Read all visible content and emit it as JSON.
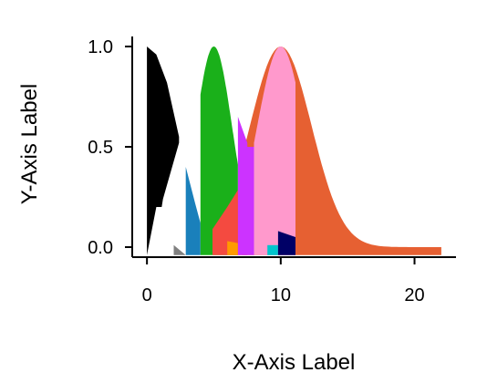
{
  "chart_data": {
    "type": "area",
    "xlabel": "X-Axis Label",
    "ylabel": "Y-Axis Label",
    "xlim": [
      -1.1,
      23.1
    ],
    "ylim": [
      -0.05,
      1.05
    ],
    "x_ticks": [
      0,
      10,
      20
    ],
    "x_tick_labels": [
      "0",
      "10",
      "20"
    ],
    "y_ticks": [
      0.0,
      0.5,
      1.0
    ],
    "y_tick_labels": [
      "0.0",
      "0.5",
      "1.0"
    ],
    "grid": false,
    "legend": "none",
    "baseline": -0.04,
    "series": [
      {
        "color": "#e66032",
        "type": "gaussian",
        "mean": 10,
        "sd": 2.3,
        "x0": 7.1,
        "x1": 22
      },
      {
        "color": "#000000",
        "type": "points",
        "x": [
          0,
          0.7,
          1.5,
          2.4,
          2.4,
          1.2,
          1.1,
          0.7,
          0
        ],
        "y": [
          1.0,
          0.96,
          0.82,
          0.55,
          0.52,
          0.24,
          0.2,
          0.2,
          0
        ]
      },
      {
        "color": "#808080",
        "type": "points",
        "x": [
          2,
          2.4,
          2.9,
          2.9,
          2
        ],
        "y": [
          0,
          0,
          0,
          0,
          0.01
        ]
      },
      {
        "color": "#1a80bb",
        "type": "points",
        "x": [
          2.9,
          3.6,
          4.0,
          4.0,
          2.9
        ],
        "y": [
          0.4,
          0.22,
          0.12,
          0,
          0
        ]
      },
      {
        "color": "#1ab01a",
        "type": "gaussian",
        "mean": 5,
        "sd": 1.35,
        "x0": 4.0,
        "x1": 6.8
      },
      {
        "color": "#f44a40",
        "type": "points",
        "x": [
          4.9,
          6.0,
          7.5,
          7.5,
          4.9
        ],
        "y": [
          0.09,
          0.2,
          0.36,
          0,
          0
        ]
      },
      {
        "color": "#ff9a00",
        "type": "points",
        "x": [
          6.0,
          6.8,
          6.8,
          6.0
        ],
        "y": [
          0.03,
          0.02,
          0,
          0
        ]
      },
      {
        "color": "#cc33ff",
        "type": "points",
        "x": [
          6.8,
          7.5,
          7.5,
          8.0,
          8.0,
          7.5,
          6.8
        ],
        "y": [
          0.65,
          0.52,
          0.5,
          0.5,
          0,
          0,
          0
        ]
      },
      {
        "color": "#ff99cc",
        "type": "gaussian",
        "mean": 10,
        "sd": 1.75,
        "x0": 8.0,
        "x1": 11.1
      },
      {
        "color": "#00c5cd",
        "type": "points",
        "x": [
          9.0,
          9.8,
          9.8,
          9.0
        ],
        "y": [
          0,
          0,
          0.01,
          0.01
        ]
      },
      {
        "color": "#000066",
        "type": "points",
        "x": [
          9.8,
          11.1,
          11.1,
          9.8
        ],
        "y": [
          0.08,
          0.05,
          0,
          0
        ]
      },
      {
        "color": "#800000",
        "type": "points",
        "x": [
          12,
          22,
          22,
          12
        ],
        "y": [
          0.0,
          0.0,
          0.0,
          0.0
        ]
      }
    ]
  }
}
